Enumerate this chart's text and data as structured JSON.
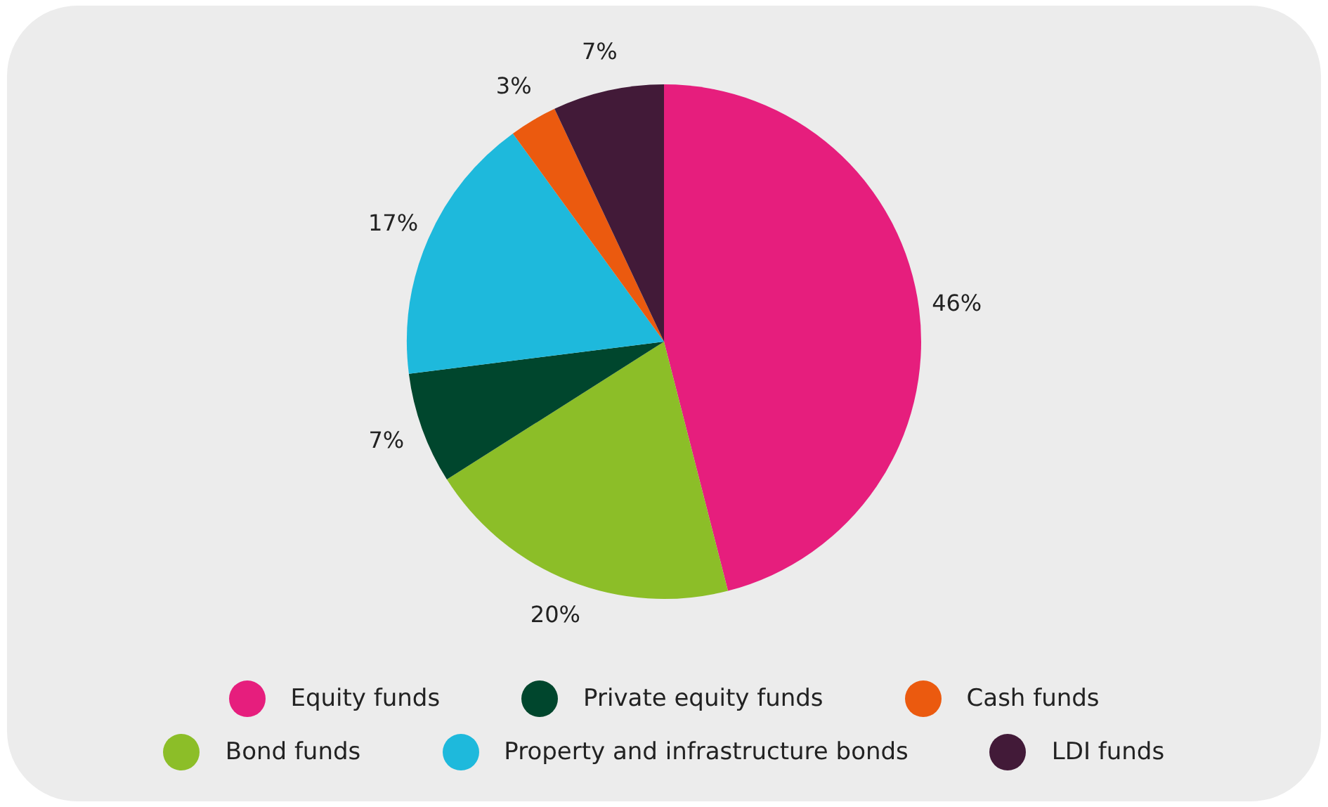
{
  "chart_data": {
    "type": "pie",
    "categories": [
      "Equity funds",
      "Bond funds",
      "Private equity funds",
      "Property and infrastructure bonds",
      "Cash funds",
      "LDI funds"
    ],
    "values": [
      46,
      20,
      7,
      17,
      3,
      7
    ],
    "value_labels": [
      "46%",
      "20%",
      "7%",
      "17%",
      "3%",
      "7%"
    ],
    "colors": [
      "#e61e7d",
      "#8cbe28",
      "#00462d",
      "#1eb9dc",
      "#eb5a0f",
      "#421a38"
    ],
    "legend": "bottom"
  }
}
